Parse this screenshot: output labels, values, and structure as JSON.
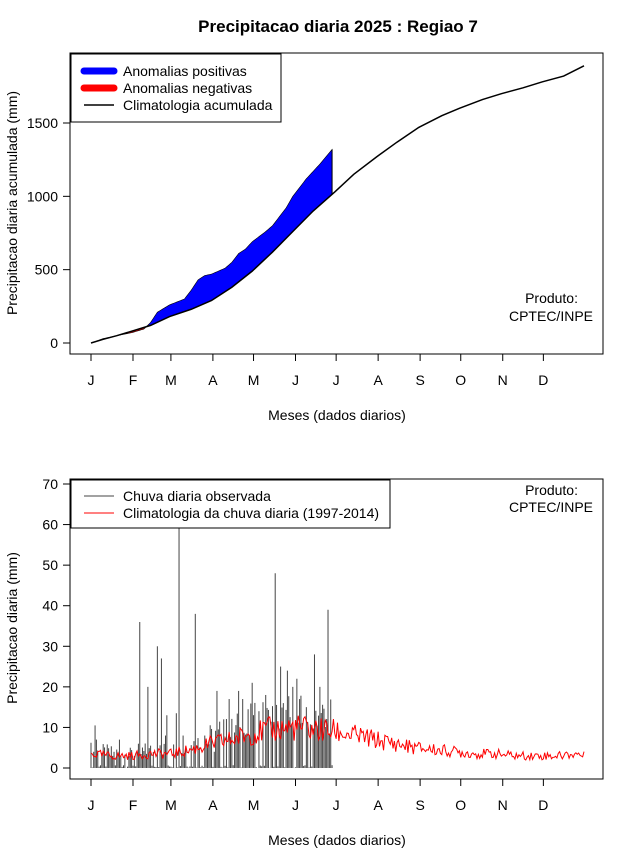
{
  "colors": {
    "positive": "#0000FF",
    "negative": "#FF0000",
    "climatology": "#000000",
    "observed_bars": "#444444",
    "climatology_daily": "#FF0000"
  },
  "chart_data": [
    {
      "type": "area",
      "title": "Precipitacao diaria 2025 : Regiao 7",
      "xlabel": "Meses (dados diarios)",
      "ylabel": "Precipitacao diaria acumulada (mm)",
      "x_ticks": [
        "J",
        "F",
        "M",
        "A",
        "M",
        "J",
        "J",
        "A",
        "S",
        "O",
        "N",
        "D"
      ],
      "x_tick_days": [
        1,
        32,
        60,
        91,
        121,
        152,
        182,
        213,
        244,
        274,
        305,
        335
      ],
      "y_ticks": [
        0,
        500,
        1000,
        1500
      ],
      "xlim": [
        1,
        365
      ],
      "ylim": [
        0,
        1900
      ],
      "legend": {
        "placement": "top-left",
        "items": [
          "Anomalias positivas",
          "Anomalias negativas",
          "Climatologia acumulada"
        ]
      },
      "annotation": [
        "Produto:",
        "CPTEC/INPE"
      ],
      "climatology_cumulative": {
        "x": [
          1,
          10,
          20,
          31,
          45,
          59,
          75,
          90,
          105,
          120,
          135,
          150,
          165,
          181,
          195,
          212,
          227,
          243,
          260,
          273,
          290,
          304,
          320,
          334,
          350,
          365
        ],
        "y": [
          0,
          25,
          50,
          80,
          120,
          180,
          230,
          290,
          380,
          490,
          620,
          760,
          900,
          1030,
          1150,
          1270,
          1370,
          1470,
          1550,
          1600,
          1660,
          1700,
          1740,
          1780,
          1820,
          1890
        ]
      },
      "observed_cumulative": {
        "x": [
          1,
          10,
          20,
          31,
          40,
          45,
          50,
          59,
          70,
          75,
          80,
          85,
          90,
          100,
          105,
          110,
          115,
          120,
          130,
          135,
          145,
          150,
          160,
          170,
          179
        ],
        "y": [
          0,
          30,
          50,
          70,
          95,
          140,
          210,
          260,
          300,
          360,
          430,
          460,
          470,
          510,
          550,
          610,
          640,
          690,
          760,
          800,
          920,
          1000,
          1120,
          1220,
          1320
        ]
      }
    },
    {
      "type": "bar",
      "xlabel": "Meses (dados diarios)",
      "ylabel": "Precipitacao diaria (mm)",
      "x_ticks": [
        "J",
        "F",
        "M",
        "A",
        "M",
        "J",
        "J",
        "A",
        "S",
        "O",
        "N",
        "D"
      ],
      "x_tick_days": [
        1,
        32,
        60,
        91,
        121,
        152,
        182,
        213,
        244,
        274,
        305,
        335
      ],
      "y_ticks": [
        0,
        10,
        20,
        30,
        40,
        50,
        60,
        70
      ],
      "xlim": [
        1,
        365
      ],
      "ylim": [
        0,
        70
      ],
      "legend": {
        "placement": "top-left",
        "items": [
          "Chuva diaria observada",
          "Climatologia da chuva diaria (1997-2014)"
        ]
      },
      "annotation": [
        "Produto:",
        "CPTEC/INPE"
      ],
      "observed_daily_peaks": {
        "x": [
          3,
          4,
          5,
          22,
          30,
          37,
          43,
          50,
          53,
          56,
          57,
          64,
          66,
          69,
          78,
          85,
          92,
          94,
          99,
          103,
          110,
          113,
          120,
          125,
          130,
          137,
          141,
          143,
          146,
          150,
          153,
          160,
          166,
          170,
          176
        ],
        "y": [
          4,
          10.5,
          7,
          7,
          5,
          36,
          20,
          30,
          27,
          8,
          13,
          13.5,
          74,
          8,
          38,
          8,
          4,
          19,
          12,
          17,
          19,
          17,
          21,
          14,
          18,
          48,
          25,
          16,
          24,
          20,
          22,
          15,
          28,
          20,
          39
        ]
      },
      "climatology_daily": {
        "x": [
          1,
          15,
          30,
          45,
          60,
          75,
          90,
          105,
          120,
          135,
          150,
          165,
          181,
          195,
          210,
          225,
          240,
          255,
          270,
          285,
          300,
          315,
          330,
          345,
          360,
          365
        ],
        "y": [
          3.5,
          3,
          3,
          3.5,
          3.5,
          4.5,
          6,
          7,
          8.5,
          9.5,
          10,
          9.5,
          9,
          8,
          7,
          6,
          5,
          4.5,
          4,
          3.5,
          3.5,
          3,
          3,
          3,
          3.5,
          3
        ]
      }
    }
  ]
}
